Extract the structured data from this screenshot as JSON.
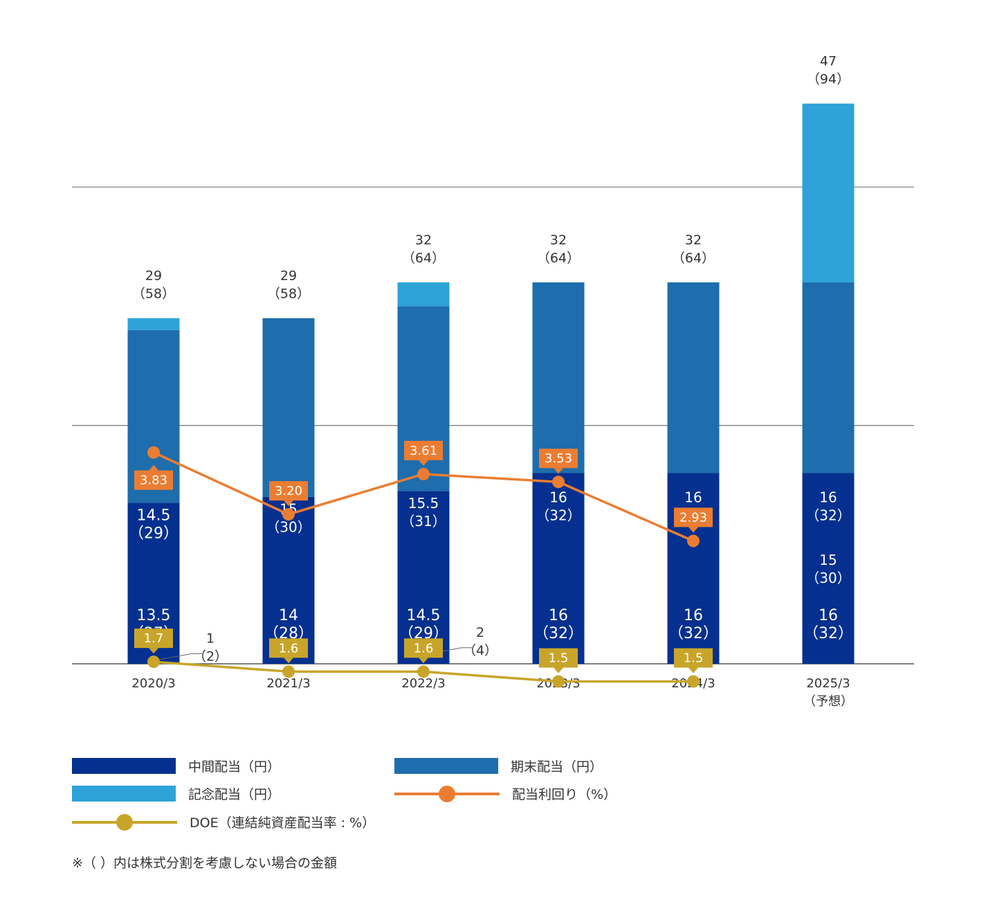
{
  "chart_data": {
    "type": "bar",
    "categories": [
      "2020/3",
      "2021/3",
      "2022/3",
      "2023/3",
      "2024/3",
      "2025/3"
    ],
    "category_sublabels": [
      "",
      "",
      "",
      "",
      "",
      "（予想）"
    ],
    "stacked": true,
    "series": [
      {
        "name": "中間配当（円）",
        "color": "#05308f",
        "values": [
          13.5,
          14,
          14.5,
          16,
          16,
          16
        ],
        "labels": [
          "13.5",
          "14",
          "14.5",
          "16",
          "16",
          "16"
        ],
        "sublabels": [
          "（27）",
          "（28）",
          "（29）",
          "（32）",
          "（32）",
          "（32）"
        ]
      },
      {
        "name": "期末配当（円）",
        "color": "#1e6dac",
        "values": [
          14.5,
          15,
          15.5,
          16,
          16,
          16
        ],
        "labels": [
          "14.5",
          "15",
          "15.5",
          "16",
          "16",
          "16"
        ],
        "sublabels": [
          "（29）",
          "（30）",
          "（31）",
          "（32）",
          "（32）",
          "（32）"
        ]
      },
      {
        "name": "記念配当（円）",
        "color": "#2ea3d8",
        "values": [
          1,
          0,
          2,
          0,
          0,
          15
        ],
        "labels": [
          "1",
          "",
          "2",
          "",
          "",
          "15"
        ],
        "sublabels": [
          "（2）",
          "",
          "（4）",
          "",
          "",
          "（30）"
        ]
      }
    ],
    "totals": [
      "29",
      "29",
      "32",
      "32",
      "32",
      "47"
    ],
    "total_sublabels": [
      "（58）",
      "（58）",
      "（64）",
      "（64）",
      "（64）",
      "（94）"
    ],
    "lines": [
      {
        "name": "配当利回り（%）",
        "color": "#eb7d32",
        "values": [
          3.83,
          3.2,
          3.61,
          3.53,
          2.93,
          null
        ],
        "labels": [
          "3.83",
          "3.20",
          "3.61",
          "3.53",
          "2.93",
          ""
        ]
      },
      {
        "name": "DOE（連結純資産配当率 : %）",
        "color": "#c8a52a",
        "values": [
          1.7,
          1.6,
          1.6,
          1.5,
          1.5,
          null
        ],
        "labels": [
          "1.7",
          "1.6",
          "1.6",
          "1.5",
          "1.5",
          ""
        ]
      }
    ],
    "ylim": [
      0,
      50
    ],
    "gridlines": [
      0,
      20,
      40
    ],
    "grid": true,
    "legend_position": "bottom"
  },
  "legend": {
    "interim": "中間配当（円）",
    "year_end": "期末配当（円）",
    "commemorative": "記念配当（円）",
    "yield": "配当利回り（%）",
    "doe": "DOE（連結純資産配当率 : %）"
  },
  "note": "※（ ）内は株式分割を考慮しない場合の金額"
}
